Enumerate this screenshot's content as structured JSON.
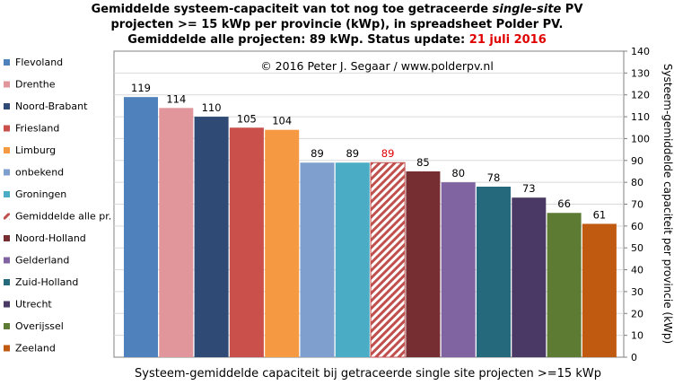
{
  "chart_data": {
    "type": "bar",
    "title_lines": [
      {
        "before": "Gemiddelde systeem-capaciteit van tot nog toe getraceerde ",
        "emph": "single-site",
        "after": " PV"
      },
      {
        "text": "projecten >= 15 kWp per provincie (kWp), in spreadsheet Polder PV."
      },
      {
        "prefix": "Gemiddelde alle projecten: 89 kWp. Status update: ",
        "date": "21 juli 2016"
      }
    ],
    "copyright": "© 2016 Peter J. Segaar / www.polderpv.nl",
    "xlabel": "Systeem-gemiddelde capaciteit bij getraceerde single site projecten >=15 kWp",
    "ylabel": "Systeem-gemiddelde capaciteit per provincie (kWp)",
    "ylim": [
      0,
      140
    ],
    "yticks": [
      0,
      10,
      20,
      30,
      40,
      50,
      60,
      70,
      80,
      90,
      100,
      110,
      120,
      130,
      140
    ],
    "grid": true,
    "legend_position": "left",
    "categories": [
      "Flevoland",
      "Drenthe",
      "Noord-Brabant",
      "Friesland",
      "Limburg",
      "onbekend",
      "Groningen",
      "Gemiddelde alle pr.",
      "Noord-Holland",
      "Gelderland",
      "Zuid-Holland",
      "Utrecht",
      "Overijssel",
      "Zeeland"
    ],
    "values": [
      119,
      114,
      110,
      105,
      104,
      89,
      89,
      89,
      85,
      80,
      78,
      73,
      66,
      61
    ],
    "colors": [
      "#4f81bd",
      "#e0969a",
      "#2e4a75",
      "#c9504b",
      "#f69943",
      "#7f9fcf",
      "#4bacc6",
      "#c0504d",
      "#772e32",
      "#8064a2",
      "#24697c",
      "#4a3964",
      "#5d7b32",
      "#c05a10"
    ],
    "hatched_category": "Gemiddelde alle pr.",
    "highlight_label_color": "#e00000"
  }
}
